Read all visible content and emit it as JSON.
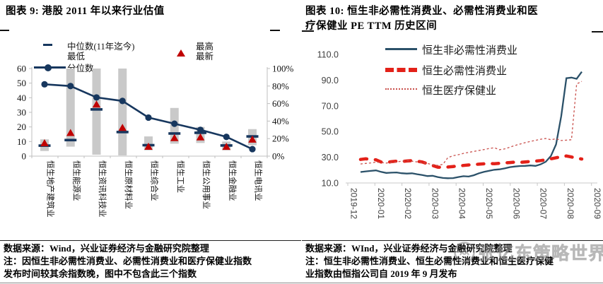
{
  "page": {
    "watermark": "张忆东策略世界"
  },
  "figure9": {
    "title": "图表 9: 港股 2011 年以来行业估值",
    "legend": {
      "median": "中位数(11年迄今)",
      "min": "最低",
      "max": "最高",
      "latest": "最新",
      "percentile": "分位数"
    },
    "footnote_lines": [
      "数据来源：Wind，兴业证券经济与金融研究院整理",
      "注：因恒生非必需性消费业、必需性消费业和医疗保健业指数",
      "发布时间较其余指数晚，图中不包含此三个指数"
    ]
  },
  "figure10": {
    "title_line1": "图表 10: 恒生非必需性消费业、必需性消费业和医",
    "title_line2": "疗保健业 PE TTM 历史区间",
    "footnote_lines": [
      "数据来源：WInd，兴业证券经济与金融研究院整理",
      "注：恒生非必需性消费业、恒生必需性消费业和恒生医疗保健",
      "业指数由恒指公司自 2019 年 9 月发布"
    ]
  },
  "chart_data": [
    {
      "type": "bar",
      "subtype": "range-bar-with-median-latest-and-percentile-line",
      "title": "港股 2011 年以来行业估值",
      "categories": [
        "恒生地产建筑业",
        "恒生能源业",
        "恒生资讯科技业",
        "恒生原材料业",
        "恒生综合业",
        "恒生工业",
        "恒生公用事业",
        "恒生金融业",
        "恒生电讯业"
      ],
      "series": [
        {
          "name": "最低",
          "role": "range_min",
          "values": [
            3.5,
            6.5,
            1.0,
            0.5,
            4.0,
            8.5,
            9.0,
            4.0,
            7.5
          ]
        },
        {
          "name": "最高",
          "role": "range_max",
          "values": [
            11.5,
            60.0,
            60.0,
            60.0,
            13.5,
            33.0,
            20.0,
            10.0,
            18.5
          ]
        },
        {
          "name": "中位数(11年迄今)",
          "role": "median",
          "values": [
            7.2,
            11.0,
            32.0,
            16.5,
            7.5,
            15.5,
            16.0,
            7.3,
            13.5
          ]
        },
        {
          "name": "最新",
          "role": "latest",
          "values": [
            9.0,
            16.0,
            35.5,
            19.5,
            6.6,
            12.5,
            13.0,
            6.5,
            11.5
          ]
        },
        {
          "name": "分位数",
          "role": "percentile",
          "axis": "right",
          "values": [
            82,
            80,
            67,
            63,
            44,
            37,
            30,
            22,
            8
          ]
        }
      ],
      "ylim_left": [
        0,
        60
      ],
      "yticks_left": [
        0,
        10,
        20,
        30,
        40,
        50,
        60
      ],
      "ylim_right": [
        0,
        100
      ],
      "yticks_right": [
        "0%",
        "20%",
        "40%",
        "60%",
        "80%",
        "100%"
      ],
      "grid": false,
      "colors": {
        "navy": "#17375E",
        "red": "#C00000",
        "bar": "#C9C9C9",
        "axis": "#BFBFBF"
      }
    },
    {
      "type": "line",
      "title": "恒生非必需性消费业、必需性消费业和医疗保健业 PE TTM 历史区间",
      "x_tick_labels": [
        "2019-12",
        "2020-01",
        "2020-02",
        "2020-03",
        "2020-04",
        "2020-05",
        "2020-06",
        "2020-07",
        "2020-08",
        "2020-09"
      ],
      "ylim": [
        10,
        110
      ],
      "yticks": [
        "110.0",
        "90.0",
        "70.0",
        "50.0",
        "30.0",
        "10.0"
      ],
      "grid": false,
      "legend_position": "top",
      "series": [
        {
          "name": "恒生非必需性消费业",
          "style": "solid",
          "color": "#2B5169",
          "values": [
            18.5,
            19.0,
            19.4,
            19.8,
            18.6,
            17.8,
            18.0,
            18.2,
            17.6,
            17.3,
            17.5,
            16.8,
            16.2,
            15.4,
            15.6,
            14.6,
            13.9,
            13.7,
            13.8,
            14.6,
            15.3,
            15.0,
            16.0,
            17.5,
            18.6,
            19.5,
            20.3,
            20.6,
            21.3,
            22.3,
            22.8,
            23.2,
            23.3,
            23.6,
            23.3,
            24.5,
            26.5,
            31.0,
            40.0,
            62.0,
            91.5,
            92.0,
            91.0,
            96.5
          ]
        },
        {
          "name": "恒生必需性消费业",
          "style": "dashed",
          "color": "#E32119",
          "values": [
            28.3,
            28.8,
            28.4,
            28.0,
            26.3,
            25.9,
            26.6,
            27.0,
            26.7,
            27.1,
            27.4,
            26.9,
            26.3,
            25.0,
            23.6,
            22.3,
            22.1,
            22.4,
            22.8,
            23.2,
            23.6,
            24.0,
            24.3,
            24.6,
            24.9,
            25.1,
            25.0,
            25.3,
            25.6,
            25.9,
            26.2,
            26.0,
            26.4,
            26.7,
            27.0,
            27.4,
            28.0,
            28.8,
            29.6,
            30.4,
            31.0,
            30.2,
            29.3,
            28.6
          ]
        },
        {
          "name": "恒生医疗保健业",
          "style": "dotted",
          "color": "#C9504C",
          "values": [
            24.8,
            25.2,
            25.6,
            26.2,
            25.9,
            25.5,
            26.0,
            26.4,
            26.9,
            27.3,
            26.9,
            26.4,
            25.9,
            25.2,
            24.2,
            23.6,
            24.5,
            29.8,
            31.2,
            32.0,
            33.0,
            33.8,
            34.5,
            35.3,
            36.0,
            36.8,
            37.4,
            35.9,
            36.5,
            37.8,
            39.2,
            40.3,
            41.4,
            42.3,
            43.2,
            44.0,
            44.6,
            43.6,
            44.4,
            43.0,
            43.3,
            43.6,
            87.0,
            89.0
          ]
        }
      ]
    }
  ]
}
